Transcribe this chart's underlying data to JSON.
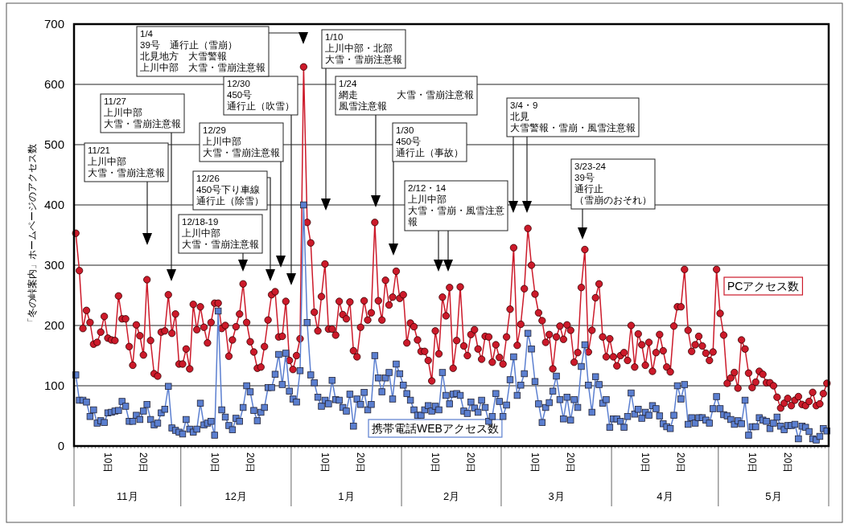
{
  "chart_data": {
    "type": "line",
    "ylabel": "「冬の峠案内」ホームページのアクセス数",
    "categories": [
      null,
      null,
      null,
      null,
      null,
      null,
      null,
      null,
      null,
      "10日",
      null,
      null,
      null,
      null,
      null,
      null,
      null,
      null,
      null,
      "20日",
      null,
      null,
      null,
      null,
      null,
      null,
      null,
      null,
      null,
      null,
      null,
      null,
      null,
      null,
      null,
      null,
      null,
      null,
      null,
      "10日",
      null,
      null,
      null,
      null,
      null,
      null,
      null,
      null,
      null,
      "20日",
      null,
      null,
      null,
      null,
      null,
      null,
      null,
      null,
      null,
      null,
      null,
      null,
      null,
      null,
      null,
      null,
      null,
      null,
      null,
      null,
      "10日",
      null,
      null,
      null,
      null,
      null,
      null,
      null,
      null,
      null,
      "20日",
      null,
      null,
      null,
      null,
      null,
      null,
      null,
      null,
      null,
      null,
      null,
      null,
      null,
      null,
      null,
      null,
      null,
      null,
      null,
      null,
      "10日",
      null,
      null,
      null,
      null,
      null,
      null,
      null,
      null,
      null,
      "20日",
      null,
      null,
      null,
      null,
      null,
      null,
      null,
      null,
      null,
      null,
      null,
      null,
      null,
      null,
      null,
      null,
      null,
      "10日",
      null,
      null,
      null,
      null,
      null,
      null,
      null,
      null,
      null,
      "20日",
      null,
      null,
      null,
      null,
      null,
      null,
      null,
      null,
      null,
      null,
      null,
      null,
      null,
      null,
      null,
      null,
      null,
      null,
      null,
      null,
      "10日",
      null,
      null,
      null,
      null,
      null,
      null,
      null,
      null,
      null,
      "20日",
      null,
      null,
      null,
      null,
      null,
      null,
      null,
      null,
      null,
      null,
      null,
      null,
      null,
      null,
      null,
      null,
      null,
      null,
      null,
      "10日",
      null,
      null,
      null,
      null,
      null,
      null,
      null,
      null,
      null,
      "20日",
      null,
      null,
      null,
      null,
      null,
      null,
      null,
      null,
      null,
      null,
      null
    ],
    "series": [
      {
        "name": "PCアクセス数",
        "color": "#cc1a2a",
        "marker": "circle",
        "values": [
          353,
          291,
          195,
          225,
          205,
          169,
          172,
          189,
          215,
          179,
          176,
          175,
          249,
          211,
          211,
          165,
          134,
          201,
          183,
          151,
          276,
          175,
          120,
          116,
          189,
          191,
          251,
          187,
          219,
          136,
          136,
          161,
          128,
          235,
          193,
          231,
          197,
          171,
          205,
          237,
          237,
          195,
          200,
          149,
          176,
          198,
          219,
          269,
          205,
          173,
          156,
          129,
          131,
          165,
          209,
          251,
          256,
          181,
          182,
          240,
          142,
          127,
          150,
          178,
          629,
          371,
          337,
          222,
          191,
          248,
          302,
          194,
          194,
          184,
          240,
          218,
          211,
          239,
          158,
          148,
          197,
          241,
          209,
          221,
          371,
          241,
          209,
          275,
          234,
          247,
          290,
          245,
          251,
          171,
          204,
          198,
          176,
          157,
          157,
          142,
          108,
          191,
          153,
          247,
          216,
          263,
          129,
          175,
          264,
          166,
          150,
          185,
          193,
          161,
          144,
          182,
          181,
          139,
          168,
          147,
          136,
          181,
          227,
          329,
          167,
          202,
          261,
          361,
          300,
          252,
          221,
          208,
          172,
          185,
          128,
          181,
          199,
          177,
          201,
          192,
          139,
          155,
          263,
          326,
          156,
          192,
          246,
          269,
          181,
          148,
          178,
          148,
          133,
          150,
          155,
          142,
          200,
          131,
          186,
          168,
          134,
          172,
          124,
          155,
          185,
          158,
          131,
          123,
          199,
          231,
          231,
          293,
          192,
          157,
          168,
          182,
          166,
          154,
          142,
          156,
          293,
          220,
          184,
          104,
          113,
          122,
          96,
          176,
          161,
          121,
          97,
          106,
          124,
          119,
          105,
          105,
          100,
          81,
          63,
          71,
          79,
          67,
          76,
          82,
          69,
          67,
          74,
          89,
          67,
          70,
          87,
          104
        ]
      },
      {
        "name": "携帯電話WEBアクセス数",
        "color": "#5b7fd0",
        "marker": "square",
        "values": [
          118,
          76,
          76,
          73,
          49,
          60,
          38,
          42,
          39,
          55,
          56,
          58,
          59,
          74,
          66,
          41,
          41,
          51,
          44,
          58,
          69,
          44,
          35,
          38,
          55,
          61,
          99,
          30,
          26,
          23,
          20,
          44,
          28,
          23,
          28,
          71,
          35,
          38,
          41,
          18,
          224,
          60,
          48,
          34,
          27,
          46,
          41,
          64,
          100,
          90,
          59,
          42,
          56,
          64,
          97,
          97,
          119,
          152,
          102,
          154,
          91,
          78,
          73,
          125,
          400,
          205,
          118,
          105,
          81,
          66,
          76,
          70,
          109,
          77,
          76,
          64,
          58,
          86,
          33,
          78,
          69,
          89,
          60,
          69,
          150,
          113,
          90,
          113,
          122,
          78,
          136,
          120,
          101,
          87,
          76,
          60,
          51,
          51,
          60,
          67,
          58,
          66,
          60,
          122,
          84,
          70,
          86,
          87,
          84,
          58,
          54,
          73,
          63,
          56,
          76,
          64,
          41,
          49,
          87,
          74,
          49,
          68,
          110,
          148,
          84,
          101,
          120,
          187,
          161,
          107,
          70,
          39,
          64,
          72,
          91,
          116,
          77,
          45,
          81,
          43,
          77,
          64,
          132,
          168,
          101,
          56,
          115,
          102,
          71,
          77,
          31,
          45,
          45,
          41,
          31,
          49,
          88,
          53,
          61,
          46,
          56,
          51,
          67,
          62,
          50,
          37,
          32,
          29,
          51,
          100,
          78,
          102,
          36,
          47,
          38,
          47,
          47,
          43,
          38,
          62,
          82,
          62,
          52,
          50,
          44,
          36,
          42,
          37,
          76,
          18,
          32,
          32,
          47,
          43,
          41,
          29,
          38,
          48,
          33,
          27,
          34,
          34,
          36,
          12,
          33,
          31,
          24,
          12,
          10,
          16,
          29,
          25
        ]
      }
    ],
    "ylim": [
      0,
      700
    ],
    "yticks": [
      0,
      100,
      200,
      300,
      400,
      500,
      600,
      700
    ],
    "grid": "y",
    "legend": false,
    "annotations": [
      "11/21",
      "上川中部",
      "大雪・雪崩注意報",
      "11/27",
      "上川中部",
      "大雪・雪崩注意報",
      "12/18-19",
      "上川中部",
      "大雪・雪崩注意報",
      "12/26",
      "450号下り車線",
      "通行止（除雪）",
      "12/29",
      "上川中部",
      "大雪・雪崩注意報",
      "12/30",
      "450号",
      "通行止（吹雪）",
      "1/4",
      "39号　通行止（雪崩）",
      "北見地方　大雪警報",
      "上川中部　大雪・雪崩注意報",
      "1/10",
      "上川中部・北部",
      "大雪・雪崩注意報",
      "1/24",
      "網走　　　　大雪・雪崩注意報",
      "風雪注意報",
      "1/30",
      "450号",
      "通行止（事故）",
      "2/12・14",
      "上川中部",
      "大雪・雪崩・風雪注意",
      "報",
      "3/4・9",
      "北見",
      "大雪警報・雪崩・風雪注意報",
      "3/23-24",
      "39号",
      "通行止",
      "（雪崩のおそれ）",
      "11月",
      "12月",
      "1月",
      "2月",
      "3月",
      "4月",
      "5月"
    ]
  }
}
